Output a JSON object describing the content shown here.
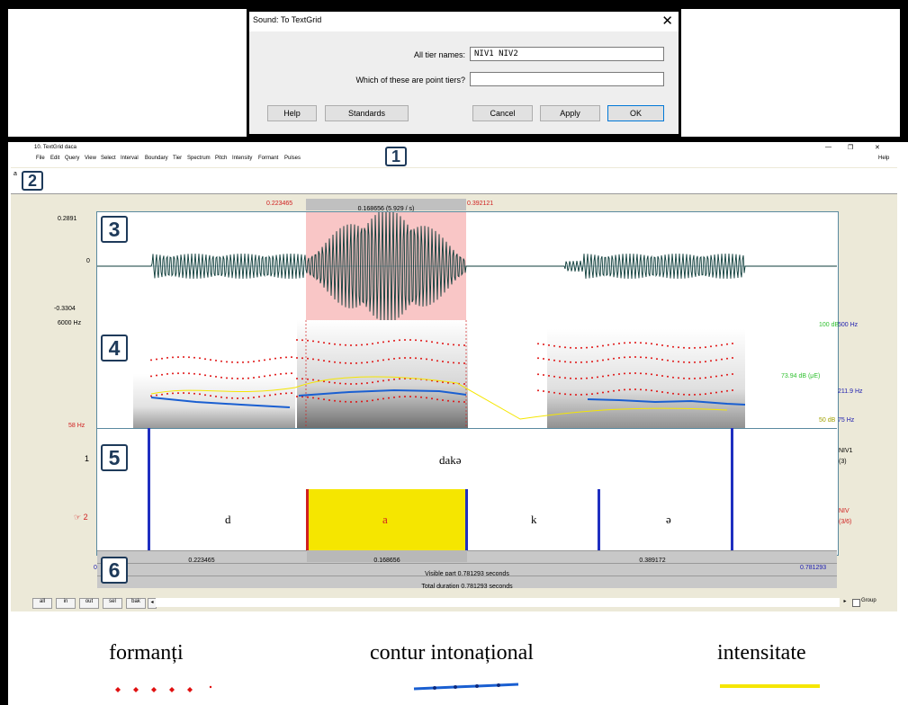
{
  "dialog": {
    "title": "Sound: To TextGrid",
    "close_glyph": "✕",
    "tier_names_label": "All tier names:",
    "tier_names_value": "NIV1 NIV2",
    "point_tiers_label": "Which of these are point tiers?",
    "point_tiers_value": "",
    "buttons": {
      "help": "Help",
      "standards": "Standards",
      "cancel": "Cancel",
      "apply": "Apply",
      "ok": "OK"
    }
  },
  "window": {
    "title": "10. TextGrid daca",
    "controls": {
      "minimize": "—",
      "maximize": "❐",
      "close": "✕"
    },
    "help": "Help",
    "menu": [
      "File",
      "Edit",
      "Query",
      "View",
      "Select",
      "Interval",
      "Boundary",
      "Tier",
      "Spectrum",
      "Pitch",
      "Intensity",
      "Formant",
      "Pulses"
    ],
    "text_field": "a"
  },
  "callouts": [
    "1",
    "2",
    "3",
    "4",
    "5",
    "6"
  ],
  "selection": {
    "start": "0.223465",
    "duration": "0.168656 (5.929 / s)",
    "end": "0.392121"
  },
  "waveform": {
    "max": "0.2891",
    "zero": "0",
    "min": "-0.3304"
  },
  "spectrogram": {
    "freq_top": "6000 Hz",
    "freq_bottom": "58 Hz",
    "intensity_top": "100 dB",
    "intensity_mid": "73.94 dB (μE)",
    "intensity_bottom": "50 dB",
    "pitch_top": "500 Hz",
    "pitch_mid": "211.9 Hz",
    "pitch_bottom": "75 Hz"
  },
  "tiers": [
    {
      "number": "1",
      "name": "NIV1",
      "count": "(3)",
      "interval_text": "dakə"
    },
    {
      "number": "☞ 2",
      "name": "NIV",
      "count": "(3/6)",
      "labels": [
        "d",
        "a",
        "k",
        "ə"
      ]
    }
  ],
  "durations": {
    "left": "0.223465",
    "mid": "0.168656",
    "right": "0.389172"
  },
  "visible": {
    "start": "0",
    "text": "Visible part 0.781293 seconds",
    "end": "0.781293"
  },
  "total": "Total duration 0.781293 seconds",
  "bottom_buttons": [
    "all",
    "in",
    "out",
    "sel",
    "bak"
  ],
  "group_label": "Group",
  "legend": [
    {
      "label": "formanți",
      "color": "#e01010"
    },
    {
      "label": "contur intonațional",
      "color": "#1a5fd1"
    },
    {
      "label": "intensitate",
      "color": "#f5e600"
    }
  ]
}
